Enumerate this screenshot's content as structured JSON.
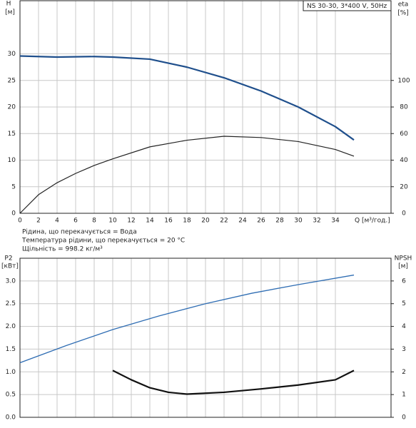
{
  "chart_data": [
    {
      "type": "line",
      "badge": "NS 30-30, 3*400 V, 50Hz",
      "y_label": "H",
      "y_unit": "[м]",
      "y2_label": "eta",
      "y2_unit": "[%]",
      "x_label": "Q [м³/год.]",
      "notes": [
        "Рідина, що перекачується = Вода",
        "Температура рідини, що перекачується = 20 °C",
        "Щільність = 998.2 кг/м³"
      ],
      "xlim": [
        0,
        40
      ],
      "xticks": [
        0,
        2,
        4,
        6,
        8,
        10,
        12,
        14,
        16,
        18,
        20,
        22,
        24,
        26,
        28,
        30,
        32,
        34
      ],
      "ylim": [
        0,
        40
      ],
      "yticks": [
        0,
        5,
        10,
        15,
        20,
        25,
        30
      ],
      "y2lim": [
        0,
        160
      ],
      "y2ticks": [
        0,
        20,
        40,
        60,
        80,
        100
      ],
      "grid": true,
      "series": [
        {
          "name": "H",
          "color": "#1f4f8c",
          "width": 2.2,
          "x": [
            0,
            4,
            8,
            10,
            14,
            18,
            22,
            26,
            30,
            34,
            36
          ],
          "values": [
            29.6,
            29.4,
            29.5,
            29.4,
            29,
            27.5,
            25.5,
            23,
            20,
            16.3,
            13.8
          ]
        },
        {
          "name": "eta",
          "axis": "y2",
          "color": "#222222",
          "width": 1.2,
          "x": [
            0,
            2,
            4,
            6,
            8,
            10,
            14,
            18,
            22,
            26,
            30,
            34,
            36
          ],
          "values": [
            0,
            14,
            23,
            30,
            36,
            41,
            50,
            55,
            58,
            57,
            54,
            48,
            43
          ]
        }
      ]
    },
    {
      "type": "line",
      "y_label": "P2",
      "y_unit": "[кВт]",
      "y2_label": "NPSH",
      "y2_unit": "[м]",
      "xlim": [
        0,
        40
      ],
      "ylim": [
        0,
        3.5
      ],
      "yticks": [
        {
          "value": 0,
          "label": "0.0"
        },
        0.5,
        {
          "value": 1,
          "label": "1.0"
        },
        1.5,
        {
          "value": 2,
          "label": "2.0"
        },
        2.5,
        {
          "value": 3,
          "label": "3.0"
        }
      ],
      "y2lim": [
        0,
        7
      ],
      "y2ticks": [
        0,
        1,
        2,
        3,
        4,
        5,
        6
      ],
      "grid": true,
      "series": [
        {
          "name": "P2",
          "color": "#2f6db3",
          "width": 1.3,
          "x": [
            0,
            5,
            10,
            15,
            20,
            25,
            30,
            36
          ],
          "values": [
            1.2,
            1.58,
            1.93,
            2.23,
            2.5,
            2.73,
            2.92,
            3.13
          ]
        },
        {
          "name": "NPSH",
          "axis": "y2",
          "color": "#111111",
          "width": 2.2,
          "x": [
            10,
            12,
            14,
            16,
            18,
            22,
            26,
            30,
            34,
            36
          ],
          "values": [
            2.06,
            1.65,
            1.3,
            1.1,
            1.02,
            1.1,
            1.25,
            1.42,
            1.65,
            2.06
          ]
        }
      ]
    }
  ]
}
